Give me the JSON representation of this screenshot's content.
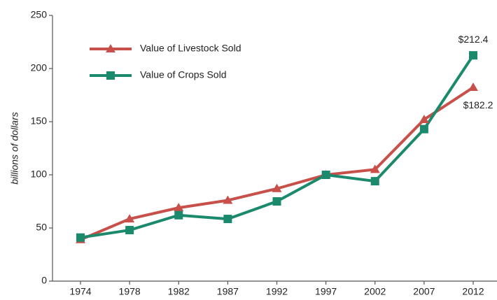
{
  "chart_data": {
    "type": "line",
    "y_label": "billions of dollars",
    "categories": [
      "1974",
      "1978",
      "1982",
      "1987",
      "1992",
      "1997",
      "2002",
      "2007",
      "2012"
    ],
    "series": [
      {
        "name": "Value of Livestock Sold",
        "color": "#c8504a",
        "marker": "triangle",
        "values": [
          39,
          58.5,
          69,
          76,
          87,
          100,
          105,
          152,
          182.2
        ],
        "value_labels": [
          null,
          null,
          null,
          null,
          null,
          null,
          null,
          null,
          "$182.2"
        ]
      },
      {
        "name": "Value of Crops Sold",
        "color": "#1b8a6c",
        "marker": "square",
        "values": [
          41,
          48,
          62,
          58.5,
          75,
          100,
          94,
          143,
          212.4
        ],
        "value_labels": [
          null,
          null,
          null,
          null,
          null,
          null,
          null,
          null,
          "$212.4"
        ]
      }
    ],
    "ylim": [
      0,
      250
    ],
    "yticks": [
      0,
      50,
      100,
      150,
      200,
      250
    ],
    "grid": false,
    "legend": "upper left"
  }
}
